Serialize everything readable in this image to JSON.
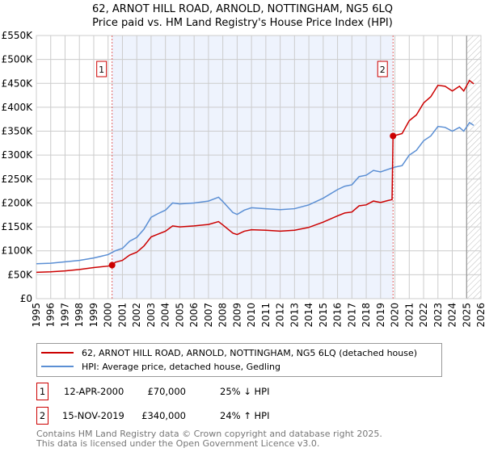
{
  "title": "62, ARNOT HILL ROAD, ARNOLD, NOTTINGHAM, NG5 6LQ",
  "subtitle": "Price paid vs. HM Land Registry's House Price Index (HPI)",
  "chart_data": {
    "type": "line",
    "xlim": [
      1995,
      2026
    ],
    "ylim": [
      0,
      550000
    ],
    "x_ticks": [
      "1995",
      "1996",
      "1997",
      "1998",
      "1999",
      "2000",
      "2001",
      "2002",
      "2003",
      "2004",
      "2005",
      "2006",
      "2007",
      "2008",
      "2009",
      "2010",
      "2011",
      "2012",
      "2013",
      "2014",
      "2015",
      "2016",
      "2017",
      "2018",
      "2019",
      "2020",
      "2021",
      "2022",
      "2023",
      "2024",
      "2025",
      "2026"
    ],
    "y_ticks": [
      {
        "v": 0,
        "label": "£0"
      },
      {
        "v": 50000,
        "label": "£50K"
      },
      {
        "v": 100000,
        "label": "£100K"
      },
      {
        "v": 150000,
        "label": "£150K"
      },
      {
        "v": 200000,
        "label": "£200K"
      },
      {
        "v": 250000,
        "label": "£250K"
      },
      {
        "v": 300000,
        "label": "£300K"
      },
      {
        "v": 350000,
        "label": "£350K"
      },
      {
        "v": 400000,
        "label": "£400K"
      },
      {
        "v": 450000,
        "label": "£450K"
      },
      {
        "v": 500000,
        "label": "£500K"
      },
      {
        "v": 550000,
        "label": "£550K"
      }
    ],
    "grid": true,
    "shaded_range": [
      2000.28,
      2019.87
    ],
    "hatched_from": 2025.0,
    "series": [
      {
        "name": "62, ARNOT HILL ROAD, ARNOLD, NOTTINGHAM, NG5 6LQ (detached house)",
        "color": "#cc0000",
        "points": [
          [
            1995,
            55000
          ],
          [
            1996,
            56000
          ],
          [
            1997,
            58000
          ],
          [
            1998,
            61000
          ],
          [
            1999,
            65000
          ],
          [
            2000,
            68000
          ],
          [
            2000.28,
            70000
          ],
          [
            2000.5,
            76000
          ],
          [
            2001,
            80000
          ],
          [
            2001.5,
            91000
          ],
          [
            2002,
            97000
          ],
          [
            2002.5,
            110000
          ],
          [
            2003,
            129000
          ],
          [
            2003.5,
            135000
          ],
          [
            2004,
            141000
          ],
          [
            2004.5,
            152000
          ],
          [
            2005,
            150000
          ],
          [
            2006,
            152000
          ],
          [
            2007,
            155000
          ],
          [
            2007.7,
            161000
          ],
          [
            2008,
            154000
          ],
          [
            2008.7,
            137000
          ],
          [
            2009,
            134000
          ],
          [
            2009.5,
            141000
          ],
          [
            2010,
            144000
          ],
          [
            2011,
            143000
          ],
          [
            2012,
            141000
          ],
          [
            2013,
            143000
          ],
          [
            2014,
            149000
          ],
          [
            2015,
            160000
          ],
          [
            2016,
            173000
          ],
          [
            2016.5,
            179000
          ],
          [
            2017,
            181000
          ],
          [
            2017.5,
            194000
          ],
          [
            2018,
            196000
          ],
          [
            2018.5,
            204000
          ],
          [
            2019,
            201000
          ],
          [
            2019.5,
            205000
          ],
          [
            2019.8,
            207000
          ],
          [
            2019.87,
            340000
          ],
          [
            2020,
            341000
          ],
          [
            2020.5,
            345000
          ],
          [
            2021,
            372000
          ],
          [
            2021.5,
            384000
          ],
          [
            2022,
            409000
          ],
          [
            2022.5,
            422000
          ],
          [
            2023,
            446000
          ],
          [
            2023.5,
            444000
          ],
          [
            2024,
            434000
          ],
          [
            2024.5,
            444000
          ],
          [
            2024.8,
            434000
          ],
          [
            2025.2,
            456000
          ],
          [
            2025.5,
            449000
          ]
        ]
      },
      {
        "name": "HPI: Average price, detached house, Gedling",
        "color": "#5b8fd4",
        "points": [
          [
            1995,
            73000
          ],
          [
            1996,
            74000
          ],
          [
            1997,
            77000
          ],
          [
            1998,
            80000
          ],
          [
            1999,
            85000
          ],
          [
            2000,
            92000
          ],
          [
            2000.5,
            100000
          ],
          [
            2001,
            105000
          ],
          [
            2001.5,
            120000
          ],
          [
            2002,
            128000
          ],
          [
            2002.5,
            145000
          ],
          [
            2003,
            170000
          ],
          [
            2003.5,
            178000
          ],
          [
            2004,
            185000
          ],
          [
            2004.5,
            200000
          ],
          [
            2005,
            198000
          ],
          [
            2006,
            200000
          ],
          [
            2007,
            204000
          ],
          [
            2007.7,
            212000
          ],
          [
            2008,
            203000
          ],
          [
            2008.7,
            180000
          ],
          [
            2009,
            176000
          ],
          [
            2009.5,
            185000
          ],
          [
            2010,
            190000
          ],
          [
            2011,
            188000
          ],
          [
            2012,
            186000
          ],
          [
            2013,
            188000
          ],
          [
            2014,
            196000
          ],
          [
            2015,
            210000
          ],
          [
            2016,
            228000
          ],
          [
            2016.5,
            235000
          ],
          [
            2017,
            238000
          ],
          [
            2017.5,
            255000
          ],
          [
            2018,
            258000
          ],
          [
            2018.5,
            268000
          ],
          [
            2019,
            265000
          ],
          [
            2019.5,
            270000
          ],
          [
            2020,
            275000
          ],
          [
            2020.5,
            278000
          ],
          [
            2021,
            300000
          ],
          [
            2021.5,
            310000
          ],
          [
            2022,
            330000
          ],
          [
            2022.5,
            340000
          ],
          [
            2023,
            360000
          ],
          [
            2023.5,
            358000
          ],
          [
            2024,
            350000
          ],
          [
            2024.5,
            358000
          ],
          [
            2024.8,
            350000
          ],
          [
            2025.2,
            368000
          ],
          [
            2025.5,
            362000
          ]
        ]
      }
    ],
    "sales": [
      {
        "label": "1",
        "x": 2000.28,
        "price": 70000
      },
      {
        "label": "2",
        "x": 2019.87,
        "price": 340000
      }
    ]
  },
  "legend": [
    {
      "label": "62, ARNOT HILL ROAD, ARNOLD, NOTTINGHAM, NG5 6LQ (detached house)",
      "color": "#cc0000"
    },
    {
      "label": "HPI: Average price, detached house, Gedling",
      "color": "#5b8fd4"
    }
  ],
  "transactions": [
    {
      "num": "1",
      "date": "12-APR-2000",
      "price": "£70,000",
      "hpi": "25% ↓ HPI"
    },
    {
      "num": "2",
      "date": "15-NOV-2019",
      "price": "£340,000",
      "hpi": "24% ↑ HPI"
    }
  ],
  "footer": [
    "Contains HM Land Registry data © Crown copyright and database right 2025.",
    "This data is licensed under the Open Government Licence v3.0."
  ]
}
